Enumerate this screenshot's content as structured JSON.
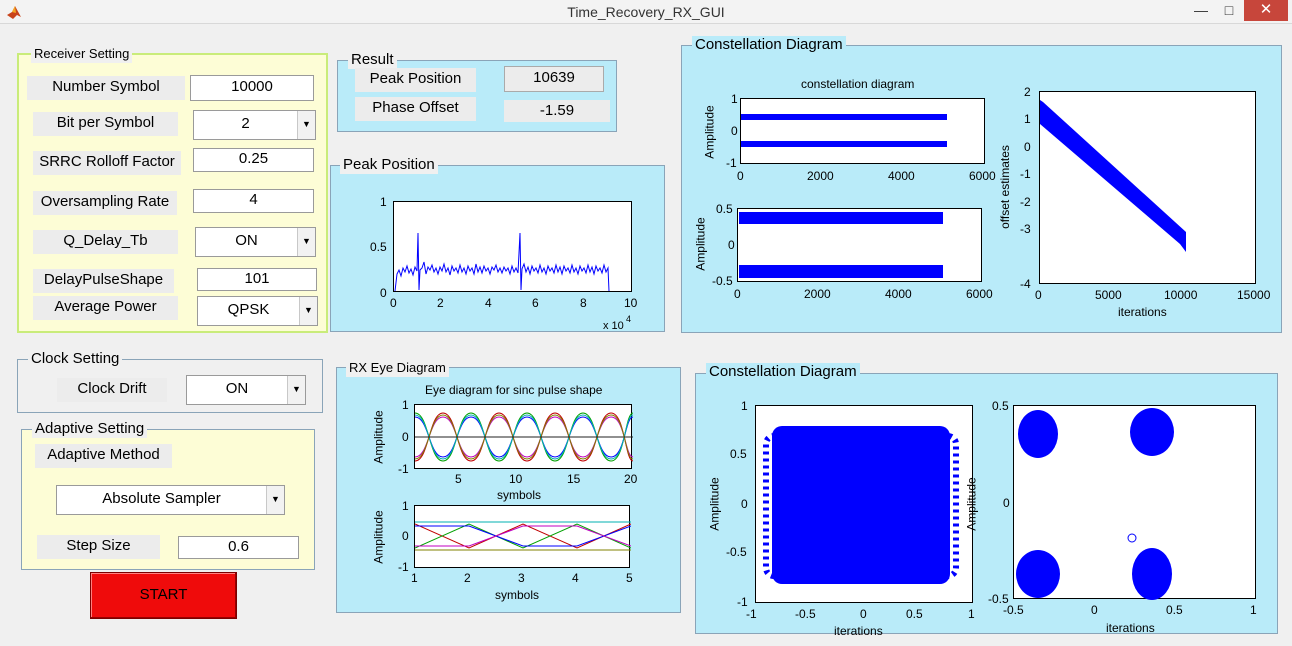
{
  "window": {
    "title": "Time_Recovery_RX_GUI",
    "minimize": "—",
    "maximize": "□",
    "close": "✕"
  },
  "colors": {
    "yellow_panel": "#fdfdd6",
    "cyan_panel": "#b9ebf9",
    "plot_blue": "#0000ff",
    "start_red": "#ef0b0b"
  },
  "receiver": {
    "title": "Receiver Setting",
    "number_symbol_label": "Number Symbol",
    "number_symbol_value": "10000",
    "bit_per_symbol_label": "Bit per Symbol",
    "bit_per_symbol_value": "2",
    "rolloff_label": "SRRC Rolloff Factor",
    "rolloff_value": "0.25",
    "oversampling_label": "Oversampling Rate",
    "oversampling_value": "4",
    "q_delay_label": "Q_Delay_Tb",
    "q_delay_value": "ON",
    "delay_pulse_label": "DelayPulseShape",
    "delay_pulse_value": "101",
    "avg_power_label": "Average Power",
    "avg_power_value": "QPSK"
  },
  "result": {
    "title": "Result",
    "peak_position_label": "Peak Position",
    "peak_position_value": "10639",
    "phase_offset_label": "Phase Offset",
    "phase_offset_value": "-1.59"
  },
  "peak_panel": {
    "title": "Peak Position",
    "yticks": [
      "1",
      "0.5",
      "0"
    ],
    "xticks": [
      "0",
      "2",
      "4",
      "6",
      "8",
      "10"
    ],
    "exponent": "x 10",
    "exponent_power": "4"
  },
  "clock": {
    "title": "Clock Setting",
    "drift_label": "Clock Drift",
    "drift_value": "ON"
  },
  "adaptive": {
    "title": "Adaptive Setting",
    "method_label": "Adaptive Method",
    "method_value": "Absolute Sampler",
    "step_label": "Step Size",
    "step_value": "0.6"
  },
  "start_label": "START",
  "eye_panel": {
    "title": "RX Eye Diagram",
    "plot_title": "Eye diagram for sinc pulse shape",
    "ylabel": "Amplitude",
    "xlabel": "symbols",
    "top_yticks": [
      "1",
      "0",
      "-1"
    ],
    "top_xticks": [
      "5",
      "10",
      "15",
      "20"
    ],
    "bot_yticks": [
      "1",
      "0",
      "-1"
    ],
    "bot_xticks": [
      "1",
      "2",
      "3",
      "4",
      "5"
    ]
  },
  "const_top": {
    "title": "Constellation Diagram",
    "plot_title": "constellation diagram",
    "ylabel": "Amplitude",
    "a_yticks": [
      "1",
      "0",
      "-1"
    ],
    "a_xticks": [
      "0",
      "2000",
      "4000",
      "6000"
    ],
    "b_yticks": [
      "0.5",
      "0",
      "-0.5"
    ],
    "b_xticks": [
      "0",
      "2000",
      "4000",
      "6000"
    ],
    "c_ylabel": "offset estimates",
    "c_xlabel": "iterations",
    "c_yticks": [
      "2",
      "1",
      "0",
      "-1",
      "-2",
      "-3",
      "-4"
    ],
    "c_xticks": [
      "0",
      "5000",
      "10000",
      "15000"
    ]
  },
  "const_bottom": {
    "title": "Constellation Diagram",
    "ylabel": "Amplitude",
    "xlabel": "iterations",
    "l_yticks": [
      "1",
      "0.5",
      "0",
      "-0.5",
      "-1"
    ],
    "l_xticks": [
      "-1",
      "-0.5",
      "0",
      "0.5",
      "1"
    ],
    "r_yticks": [
      "0.5",
      "0",
      "-0.5"
    ],
    "r_xticks": [
      "-0.5",
      "0",
      "0.5",
      "1"
    ]
  }
}
